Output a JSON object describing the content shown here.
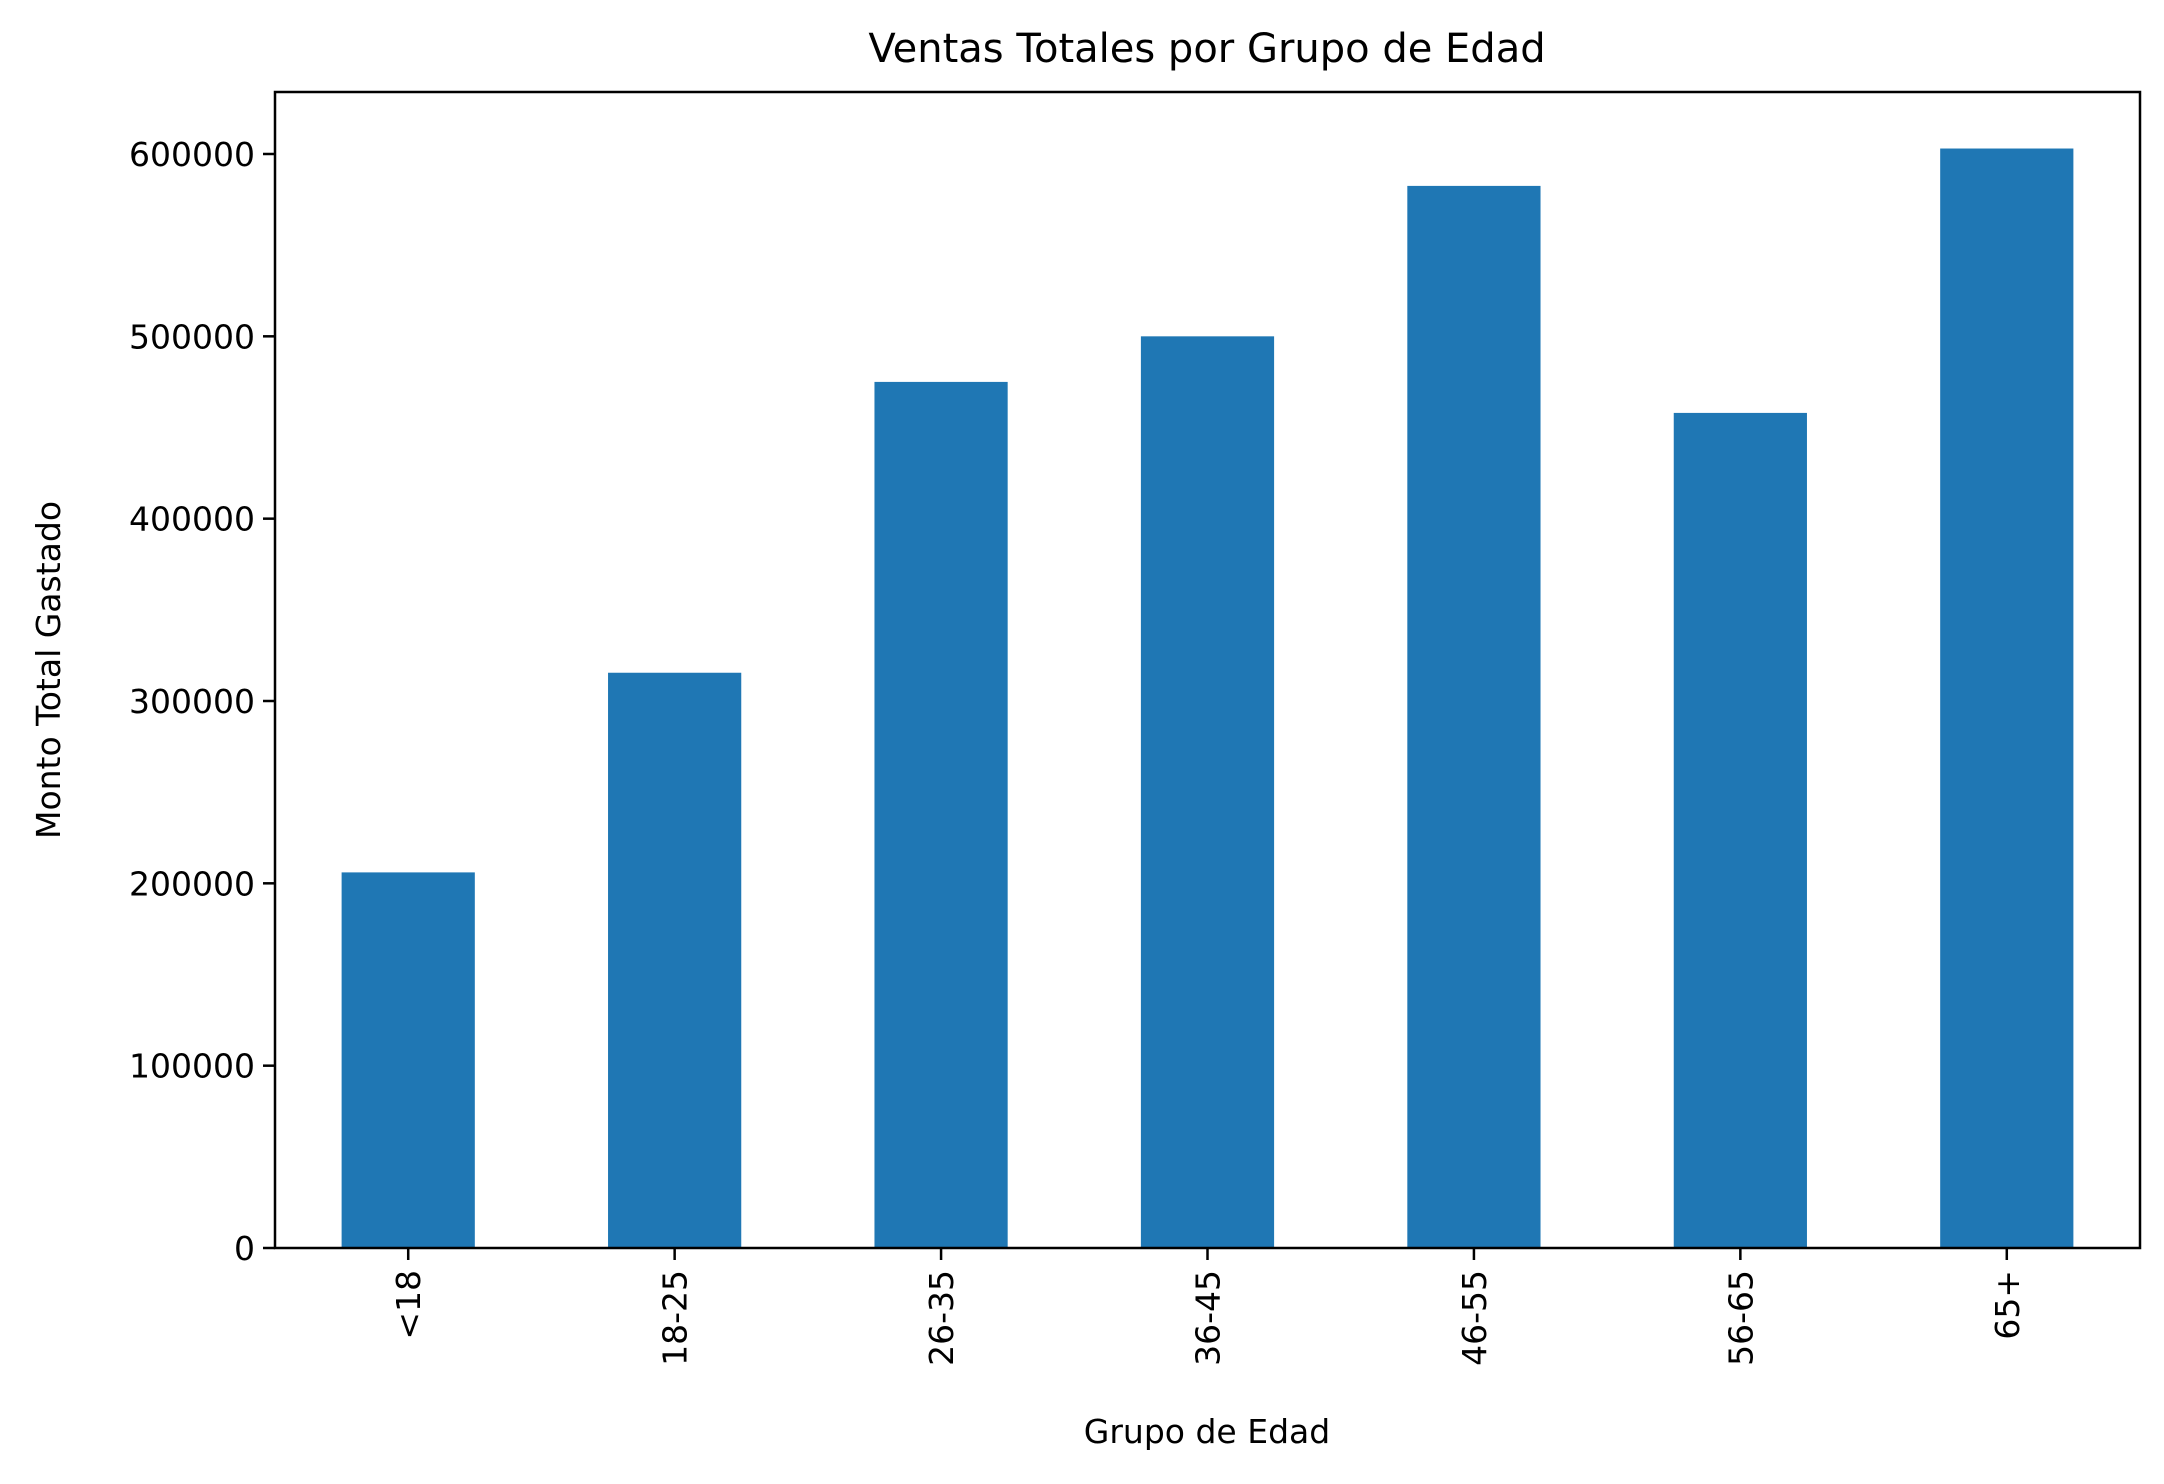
{
  "chart_data": {
    "type": "bar",
    "title": "Ventas Totales por Grupo de Edad",
    "xlabel": "Grupo de Edad",
    "ylabel": "Monto Total Gastado",
    "categories": [
      "<18",
      "18-25",
      "26-35",
      "36-45",
      "46-55",
      "56-65",
      "65+"
    ],
    "values": [
      206000,
      315500,
      475000,
      500000,
      582500,
      458000,
      603000
    ],
    "ylim": [
      0,
      634000
    ],
    "yticks": [
      0,
      100000,
      200000,
      300000,
      400000,
      500000,
      600000
    ],
    "ytick_labels": [
      "0",
      "100000",
      "200000",
      "300000",
      "400000",
      "500000",
      "600000"
    ],
    "bar_color": "#1f77b4",
    "grid": false,
    "legend": "none"
  }
}
